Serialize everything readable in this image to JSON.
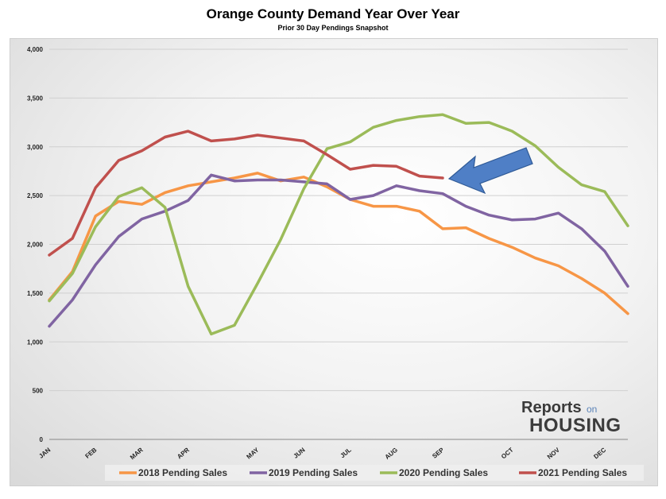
{
  "title": "Orange County Demand Year Over Year",
  "subtitle": "Prior 30 Day Pendings Snapshot",
  "logo": {
    "line1": "Reports",
    "line1b": "on",
    "line2": "HOUSING"
  },
  "chart_data": {
    "type": "line",
    "title": "Orange County Demand Year Over Year",
    "subtitle": "Prior 30 Day Pendings Snapshot",
    "xlabel": "",
    "ylabel": "",
    "ylim": [
      0,
      4000
    ],
    "yticks": [
      0,
      500,
      1000,
      1500,
      2000,
      2500,
      3000,
      3500,
      4000
    ],
    "ytick_labels": [
      "0",
      "500",
      "1,000",
      "1,500",
      "2,000",
      "2,500",
      "3,000",
      "3,500",
      "4,000"
    ],
    "x_month_labels": [
      "JAN",
      "FEB",
      "MAR",
      "APR",
      "MAY",
      "JUN",
      "JUL",
      "AUG",
      "SEP",
      "OCT",
      "NOV",
      "DEC"
    ],
    "x_month_label_index": [
      0,
      2,
      4,
      6,
      9,
      11,
      13,
      15,
      17,
      20,
      22,
      24
    ],
    "grid": true,
    "legend_position": "bottom",
    "annotation": "blue arrow pointing at the latest 2021 value",
    "series": [
      {
        "name": "2018 Pending Sales",
        "color": "#f79646",
        "values": [
          1430,
          1720,
          2290,
          2440,
          2410,
          2530,
          2600,
          2640,
          2680,
          2730,
          2650,
          2690,
          2590,
          2460,
          2390,
          2390,
          2340,
          2160,
          2170,
          2060,
          1970,
          1860,
          1780,
          1650,
          1500,
          1290
        ]
      },
      {
        "name": "2019 Pending Sales",
        "color": "#8064a2",
        "values": [
          1160,
          1430,
          1790,
          2080,
          2260,
          2340,
          2450,
          2710,
          2650,
          2660,
          2660,
          2640,
          2620,
          2460,
          2500,
          2600,
          2550,
          2520,
          2390,
          2300,
          2250,
          2260,
          2320,
          2160,
          1930,
          1570
        ]
      },
      {
        "name": "2020 Pending Sales",
        "color": "#9bbb59",
        "values": [
          1420,
          1700,
          2180,
          2490,
          2580,
          2380,
          1570,
          1080,
          1170,
          1600,
          2050,
          2570,
          2980,
          3050,
          3200,
          3270,
          3310,
          3330,
          3240,
          3250,
          3160,
          3010,
          2790,
          2610,
          2540,
          2190
        ]
      },
      {
        "name": "2021 Pending Sales",
        "color": "#c0504d",
        "values": [
          1890,
          2060,
          2580,
          2860,
          2960,
          3100,
          3160,
          3060,
          3080,
          3120,
          3090,
          3060,
          2920,
          2770,
          2810,
          2800,
          2700,
          2680
        ]
      }
    ]
  }
}
